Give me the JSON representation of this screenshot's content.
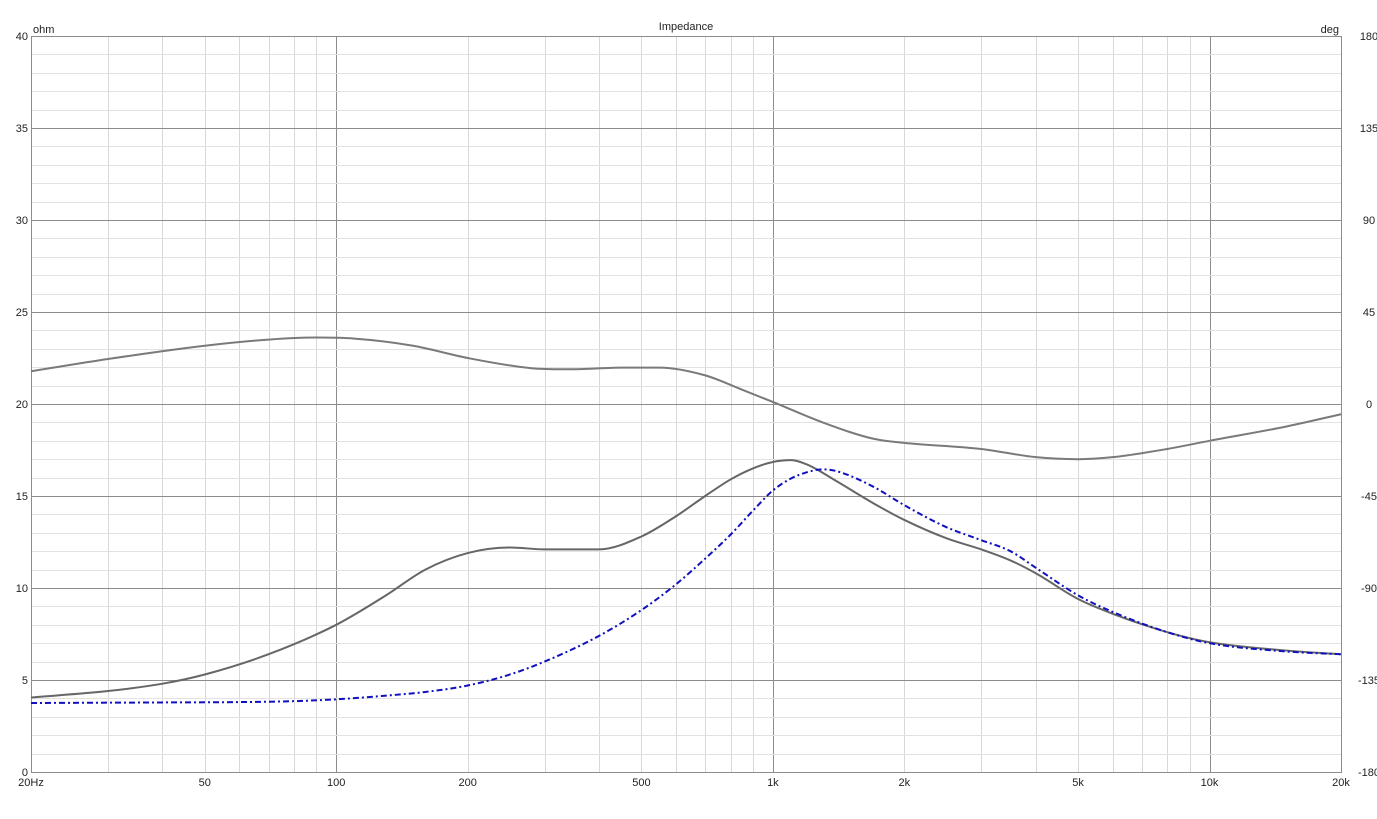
{
  "chart_data": {
    "type": "line",
    "title": "Impedance",
    "y_left_unit": "ohm",
    "y_right_unit": "deg",
    "xscale": "log",
    "xlim": [
      20,
      20000
    ],
    "ylim_left": [
      0,
      40
    ],
    "ylim_right": [
      -180,
      180
    ],
    "grid": true,
    "x_ticks": [
      {
        "value": 20,
        "label": "20Hz"
      },
      {
        "value": 50,
        "label": "50"
      },
      {
        "value": 100,
        "label": "100"
      },
      {
        "value": 200,
        "label": "200"
      },
      {
        "value": 500,
        "label": "500"
      },
      {
        "value": 1000,
        "label": "1k"
      },
      {
        "value": 2000,
        "label": "2k"
      },
      {
        "value": 5000,
        "label": "5k"
      },
      {
        "value": 10000,
        "label": "10k"
      },
      {
        "value": 20000,
        "label": "20k"
      }
    ],
    "y_left_ticks": [
      {
        "value": 0,
        "label": "0"
      },
      {
        "value": 5,
        "label": "5"
      },
      {
        "value": 10,
        "label": "10"
      },
      {
        "value": 15,
        "label": "15"
      },
      {
        "value": 20,
        "label": "20"
      },
      {
        "value": 25,
        "label": "25"
      },
      {
        "value": 30,
        "label": "30"
      },
      {
        "value": 35,
        "label": "35"
      },
      {
        "value": 40,
        "label": "40"
      }
    ],
    "y_right_ticks": [
      {
        "value": -180,
        "label": "-180"
      },
      {
        "value": -135,
        "label": "-135"
      },
      {
        "value": -90,
        "label": "-90"
      },
      {
        "value": -45,
        "label": "-45"
      },
      {
        "value": 0,
        "label": "0"
      },
      {
        "value": 45,
        "label": "45"
      },
      {
        "value": 90,
        "label": "90"
      },
      {
        "value": 135,
        "label": "135"
      },
      {
        "value": 180,
        "label": "180"
      }
    ],
    "series": [
      {
        "axis": "right",
        "color": "#7a7a7a",
        "dash": "solid",
        "x": [
          20,
          30,
          50,
          70,
          90,
          110,
          150,
          200,
          280,
          350,
          450,
          550,
          700,
          850,
          1000,
          1300,
          1700,
          2000,
          3000,
          4000,
          5000,
          6000,
          8000,
          10000,
          15000,
          20000
        ],
        "y": [
          16,
          22,
          28.5,
          31.5,
          32.5,
          32,
          28.5,
          22.5,
          17.5,
          17,
          17.8,
          17.8,
          14,
          7,
          1,
          -9,
          -17,
          -19,
          -22,
          -26,
          -27,
          -26,
          -22,
          -18,
          -11,
          -5
        ]
      },
      {
        "axis": "left",
        "color": "#666666",
        "dash": "solid",
        "x": [
          20,
          30,
          40,
          50,
          70,
          100,
          130,
          160,
          200,
          250,
          300,
          400,
          500,
          600,
          700,
          800,
          900,
          1000,
          1100,
          1200,
          1400,
          1700,
          2000,
          2500,
          3000,
          3500,
          4000,
          5000,
          6000,
          8000,
          10000,
          15000,
          20000
        ],
        "y": [
          4.05,
          4.4,
          4.8,
          5.3,
          6.4,
          8.0,
          9.6,
          11.0,
          11.9,
          12.2,
          12.1,
          12.1,
          12.8,
          13.9,
          15.0,
          15.9,
          16.5,
          16.85,
          16.95,
          16.7,
          15.8,
          14.6,
          13.7,
          12.7,
          12.1,
          11.5,
          10.8,
          9.4,
          8.6,
          7.6,
          7.05,
          6.6,
          6.4
        ]
      },
      {
        "axis": "left",
        "color": "#1010c0",
        "dash": "dashdot",
        "x": [
          20,
          40,
          60,
          80,
          100,
          130,
          160,
          200,
          250,
          300,
          400,
          500,
          600,
          700,
          800,
          900,
          1000,
          1100,
          1200,
          1300,
          1400,
          1700,
          2000,
          2500,
          3000,
          3500,
          4000,
          5000,
          6000,
          8000,
          10000,
          15000,
          20000
        ],
        "y": [
          3.75,
          3.78,
          3.8,
          3.85,
          3.95,
          4.15,
          4.35,
          4.7,
          5.3,
          6.0,
          7.4,
          8.8,
          10.2,
          11.6,
          12.9,
          14.2,
          15.3,
          15.95,
          16.3,
          16.45,
          16.35,
          15.5,
          14.5,
          13.3,
          12.6,
          12.0,
          11.1,
          9.6,
          8.7,
          7.6,
          7.0,
          6.55,
          6.4
        ]
      }
    ]
  }
}
